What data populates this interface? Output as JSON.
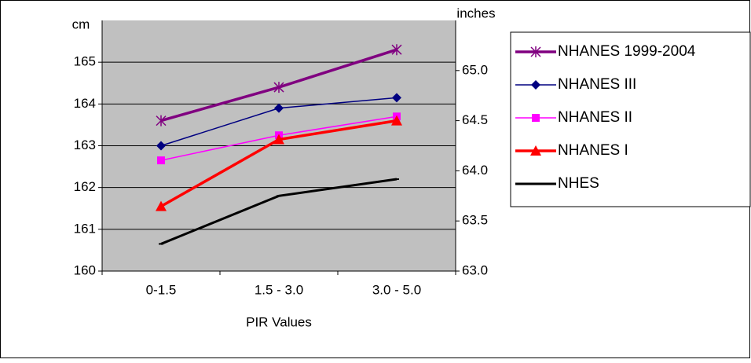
{
  "chart_data": {
    "type": "line",
    "categories": [
      "0-1.5",
      "1.5 - 3.0",
      "3.0 -  5.0"
    ],
    "x_label": "PIR Values",
    "y_label": "cm",
    "y2_label": "inches",
    "ylim": [
      160,
      166
    ],
    "yticks": [
      160,
      161,
      162,
      163,
      164,
      165
    ],
    "y2lim": [
      63.0,
      65.5
    ],
    "y2ticks": [
      {
        "value": 63,
        "label": "63.0"
      },
      {
        "value": 63.5,
        "label": "63.5"
      },
      {
        "value": 64,
        "label": "64.0"
      },
      {
        "value": 64.5,
        "label": "64.5"
      },
      {
        "value": 65,
        "label": "65.0"
      }
    ],
    "grid": true,
    "legend": "right",
    "series": [
      {
        "name": "NHANES 1999-2004",
        "color": "#800080",
        "marker": "asterisk",
        "values": [
          163.6,
          164.4,
          165.3
        ]
      },
      {
        "name": "NHANES III",
        "color": "#000080",
        "marker": "diamond",
        "values": [
          163.0,
          163.9,
          164.15
        ]
      },
      {
        "name": "NHANES II",
        "color": "#ff00ff",
        "marker": "square",
        "values": [
          162.65,
          163.25,
          163.7
        ]
      },
      {
        "name": "NHANES I",
        "color": "#ff0000",
        "marker": "triangle",
        "values": [
          161.55,
          163.15,
          163.6
        ]
      },
      {
        "name": "NHES",
        "color": "#000000",
        "marker": "dash",
        "values": [
          160.65,
          161.8,
          162.2
        ]
      }
    ]
  }
}
